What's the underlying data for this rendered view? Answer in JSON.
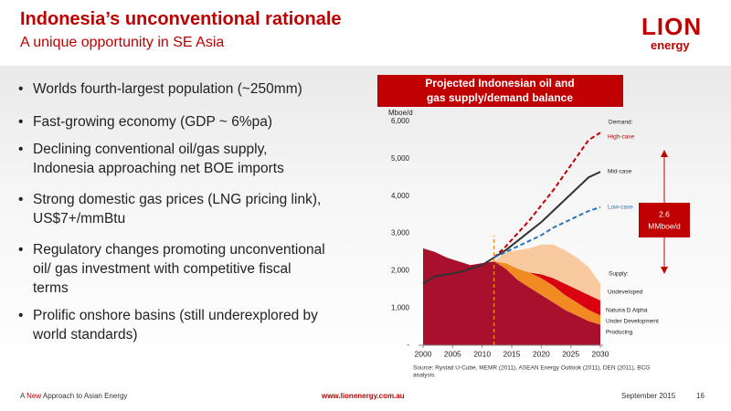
{
  "header": {
    "title": "Indonesia’s unconventional rationale",
    "subtitle": "A unique opportunity in SE Asia",
    "logo_top": "LION",
    "logo_bottom": "energy"
  },
  "bullets": [
    [
      "Worlds fourth-largest population (~250mm)"
    ],
    [
      "Fast-growing economy (GDP ~ 6%pa)"
    ],
    [
      "Declining conventional oil/gas supply,",
      "Indonesia approaching net BOE imports"
    ],
    [
      "Strong domestic gas prices (LNG pricing link),",
      "US$7+/mmBtu"
    ],
    [
      "Regulatory changes promoting unconventional",
      "oil/ gas investment with competitive fiscal",
      "terms"
    ],
    [
      "Prolific onshore basins (still underexplored by",
      "world standards)"
    ]
  ],
  "chart_data": {
    "type": "area",
    "title": [
      "Projected Indonesian oil and",
      "gas supply/demand balance"
    ],
    "y_label": "Mboe/d",
    "x": [
      2000,
      2002,
      2004,
      2006,
      2008,
      2010,
      2012,
      2014,
      2016,
      2018,
      2020,
      2022,
      2024,
      2026,
      2028,
      2030
    ],
    "xlim": [
      2000,
      2030
    ],
    "xticks": [
      2000,
      2005,
      2010,
      2015,
      2020,
      2025,
      2030
    ],
    "ylim": [
      0,
      6000
    ],
    "yticks": [
      {
        "value": 0,
        "label": "-"
      },
      {
        "value": 1000,
        "label": "1,000"
      },
      {
        "value": 2000,
        "label": "2,000"
      },
      {
        "value": 3000,
        "label": "3,000"
      },
      {
        "value": 4000,
        "label": "4,000"
      },
      {
        "value": 5000,
        "label": "5,000"
      },
      {
        "value": 6000,
        "label": "6,000"
      }
    ],
    "forecast_start": 2012,
    "series": [
      {
        "name": "Producing",
        "kind": "area",
        "color": "#a8102e",
        "values": [
          2600,
          2500,
          2350,
          2250,
          2150,
          2200,
          2250,
          2050,
          1750,
          1550,
          1350,
          1150,
          950,
          800,
          650,
          550
        ]
      },
      {
        "name": "Under Development",
        "kind": "area",
        "color": "#f28a24",
        "values": [
          null,
          null,
          null,
          null,
          null,
          null,
          0,
          150,
          300,
          400,
          450,
          450,
          400,
          350,
          300,
          250
        ]
      },
      {
        "name": "Natuna D Alpha",
        "kind": "area",
        "color": "#d9000f",
        "values": [
          null,
          null,
          null,
          null,
          null,
          null,
          null,
          null,
          null,
          0,
          100,
          200,
          300,
          350,
          400,
          400
        ]
      },
      {
        "name": "Undeveloped",
        "kind": "area",
        "color": "#f9c9a0",
        "values": [
          null,
          null,
          null,
          null,
          null,
          null,
          0,
          300,
          500,
          650,
          800,
          900,
          900,
          850,
          750,
          450
        ]
      },
      {
        "name": "High-case",
        "kind": "line",
        "dash": true,
        "color": "#c00000",
        "values": [
          null,
          null,
          null,
          null,
          null,
          null,
          2350,
          2650,
          3000,
          3350,
          3750,
          4150,
          4600,
          5050,
          5500,
          5700
        ]
      },
      {
        "name": "Mid-case",
        "kind": "line",
        "dash": false,
        "color": "#333333",
        "values": [
          1650,
          1850,
          1900,
          1950,
          2050,
          2150,
          2350,
          2550,
          2800,
          3050,
          3300,
          3600,
          3900,
          4200,
          4500,
          4650
        ]
      },
      {
        "name": "Low-case",
        "kind": "line",
        "dash": true,
        "color": "#2e75b6",
        "values": [
          null,
          null,
          null,
          null,
          null,
          null,
          2350,
          2500,
          2650,
          2800,
          2950,
          3150,
          3300,
          3450,
          3600,
          3700
        ]
      }
    ],
    "legend_groups": {
      "demand": "Demand:",
      "supply": "Supply:"
    },
    "annotation": {
      "value": "2.6",
      "unit": "MMboe/d"
    },
    "source": [
      "Source: Rystad U-Cube, MEMR (2011), ASEAN Energy Outlook (2011), DEN (2011), BCG",
      "analysis"
    ]
  },
  "footer": {
    "tagline_a": "A ",
    "tagline_b": "New",
    "tagline_c": " Approach to Asian Energy",
    "url": "www.lionenergy.com.au",
    "date": "September 2015",
    "page": "16"
  }
}
